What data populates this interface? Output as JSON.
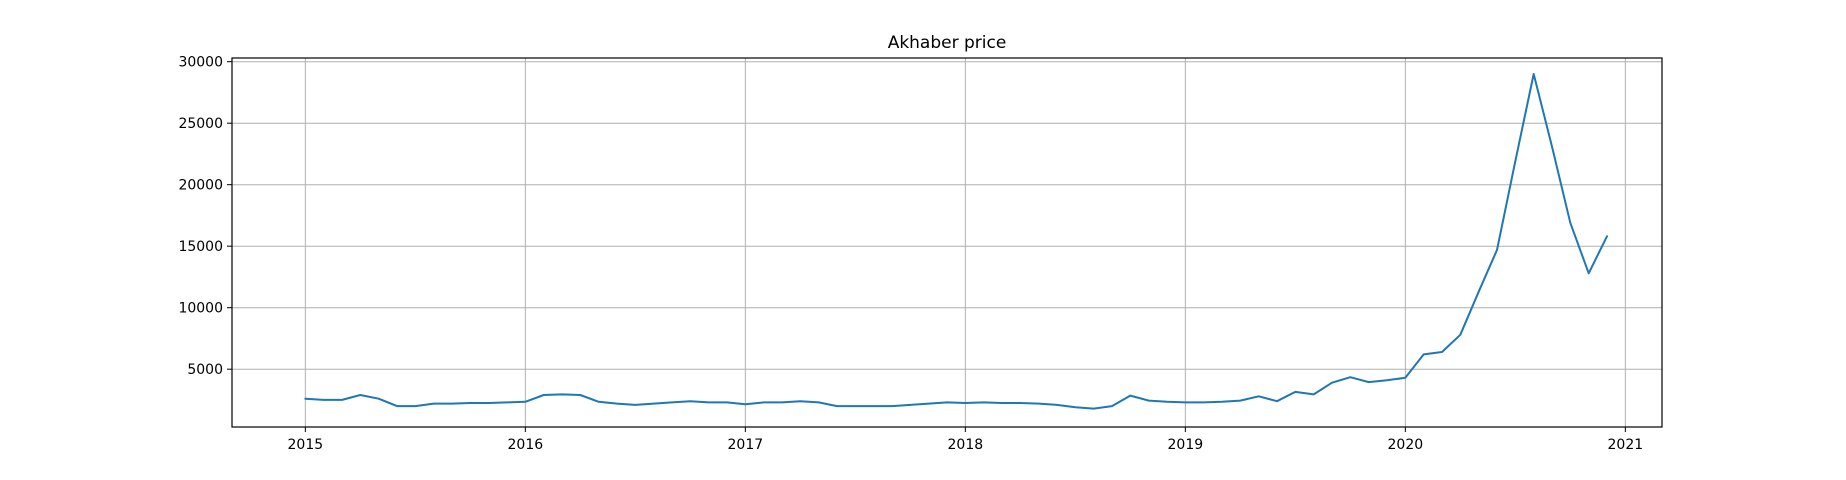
{
  "chart_data": {
    "type": "line",
    "title": "Akhaber price",
    "xlabel": "",
    "ylabel": "",
    "grid": true,
    "legend": "none",
    "x_ticks": [
      "2015",
      "2016",
      "2017",
      "2018",
      "2019",
      "2020",
      "2021"
    ],
    "y_ticks": [
      5000,
      10000,
      15000,
      20000,
      25000,
      30000
    ],
    "xlim": [
      "2014-09",
      "2021-03"
    ],
    "ylim": [
      300,
      30300
    ],
    "series_color": "#1f77b4",
    "series": [
      {
        "x": [
          "2015-01",
          "2015-02",
          "2015-03",
          "2015-04",
          "2015-05",
          "2015-06",
          "2015-07",
          "2015-08",
          "2015-09",
          "2015-10",
          "2015-11",
          "2015-12",
          "2016-01",
          "2016-02",
          "2016-03",
          "2016-04",
          "2016-05",
          "2016-06",
          "2016-07",
          "2016-08",
          "2016-09",
          "2016-10",
          "2016-11",
          "2016-12",
          "2017-01",
          "2017-02",
          "2017-03",
          "2017-04",
          "2017-05",
          "2017-06",
          "2017-07",
          "2017-08",
          "2017-09",
          "2017-10",
          "2017-11",
          "2017-12",
          "2018-01",
          "2018-02",
          "2018-03",
          "2018-04",
          "2018-05",
          "2018-06",
          "2018-07",
          "2018-08",
          "2018-09",
          "2018-10",
          "2018-11",
          "2018-12",
          "2019-01",
          "2019-02",
          "2019-03",
          "2019-04",
          "2019-05",
          "2019-06",
          "2019-07",
          "2019-08",
          "2019-09",
          "2019-10",
          "2019-11",
          "2019-12",
          "2020-01",
          "2020-02",
          "2020-03",
          "2020-04",
          "2020-05",
          "2020-06",
          "2020-07",
          "2020-08",
          "2020-09",
          "2020-10",
          "2020-11",
          "2020-12"
        ],
        "values": [
          2600,
          2500,
          2500,
          2900,
          2600,
          2000,
          2000,
          2200,
          2200,
          2250,
          2250,
          2300,
          2350,
          2900,
          2950,
          2900,
          2350,
          2200,
          2100,
          2200,
          2300,
          2400,
          2300,
          2300,
          2150,
          2300,
          2300,
          2400,
          2300,
          2000,
          2000,
          2000,
          2000,
          2100,
          2200,
          2300,
          2250,
          2300,
          2250,
          2250,
          2200,
          2100,
          1900,
          1800,
          2000,
          2850,
          2450,
          2350,
          2300,
          2300,
          2350,
          2450,
          2800,
          2400,
          3150,
          2950,
          3900,
          4350,
          3950,
          4100,
          4300,
          6200,
          6400,
          7800,
          11300,
          14700,
          21900,
          29000,
          23100,
          16900,
          12800,
          15800
        ]
      }
    ]
  }
}
